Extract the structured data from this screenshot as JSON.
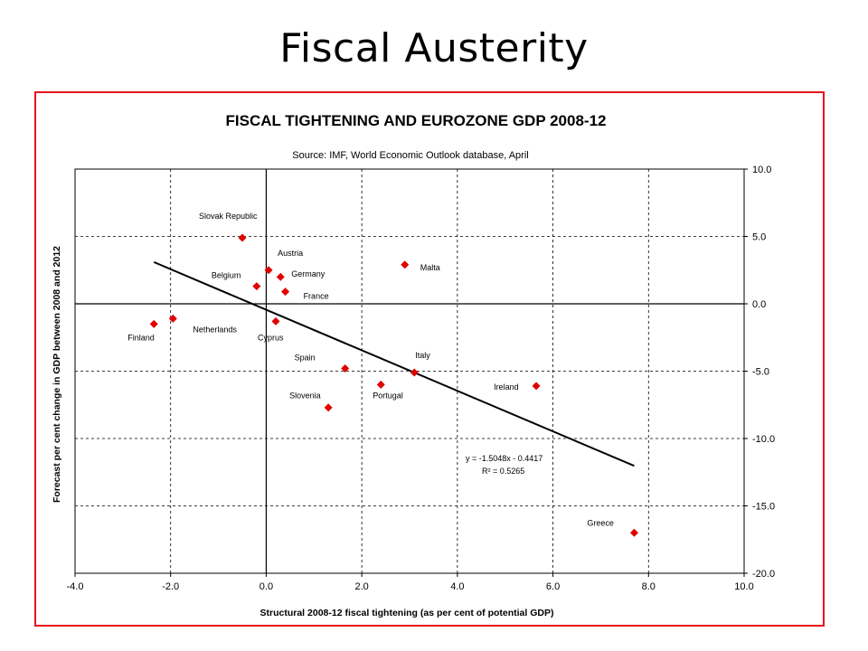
{
  "slide": {
    "title": "Fiscal Austerity"
  },
  "colors": {
    "frame": "#e8141a",
    "marker": "#e00000",
    "trendline": "#000000"
  },
  "chart_data": {
    "type": "scatter",
    "title": "FISCAL TIGHTENING AND EUROZONE GDP 2008-12",
    "subtitle": "Source: IMF, World Economic Outlook database, April",
    "xlabel": "Structural 2008-12 fiscal tightening (as per cent of potential GDP)",
    "ylabel": "Forecast per cent change in GDP between 2008 and 2012",
    "xlim": [
      -4.0,
      10.0
    ],
    "ylim": [
      -20.0,
      10.0
    ],
    "x_ticks": [
      "-4.0",
      "-2.0",
      "0.0",
      "2.0",
      "4.0",
      "6.0",
      "8.0",
      "10.0"
    ],
    "y_ticks": [
      "10.0",
      "5.0",
      "0.0",
      "-5.0",
      "-10.0",
      "-15.0",
      "-20.0"
    ],
    "y_axis_side": "right",
    "grid": true,
    "points": [
      {
        "label": "Slovak Republic",
        "x": -0.5,
        "y": 4.9
      },
      {
        "label": "Austria",
        "x": 0.05,
        "y": 2.5
      },
      {
        "label": "Germany",
        "x": 0.3,
        "y": 2.0
      },
      {
        "label": "Belgium",
        "x": -0.2,
        "y": 1.3
      },
      {
        "label": "France",
        "x": 0.4,
        "y": 0.9
      },
      {
        "label": "Malta",
        "x": 2.9,
        "y": 2.9
      },
      {
        "label": "Finland",
        "x": -2.35,
        "y": -1.5
      },
      {
        "label": "Netherlands",
        "x": -1.95,
        "y": -1.1
      },
      {
        "label": "Cyprus",
        "x": 0.2,
        "y": -1.3
      },
      {
        "label": "Spain",
        "x": 1.65,
        "y": -4.8
      },
      {
        "label": "Italy",
        "x": 3.1,
        "y": -5.1
      },
      {
        "label": "Portugal",
        "x": 2.4,
        "y": -6.0
      },
      {
        "label": "Slovenia",
        "x": 1.3,
        "y": -7.7
      },
      {
        "label": "Ireland",
        "x": 5.65,
        "y": -6.1
      },
      {
        "label": "Greece",
        "x": 7.7,
        "y": -17.0
      }
    ],
    "trendline": {
      "x_range": [
        -2.35,
        7.7
      ],
      "equation": "y = -1.5048x - 0.4417",
      "r2": "R² = 0.5265"
    }
  }
}
